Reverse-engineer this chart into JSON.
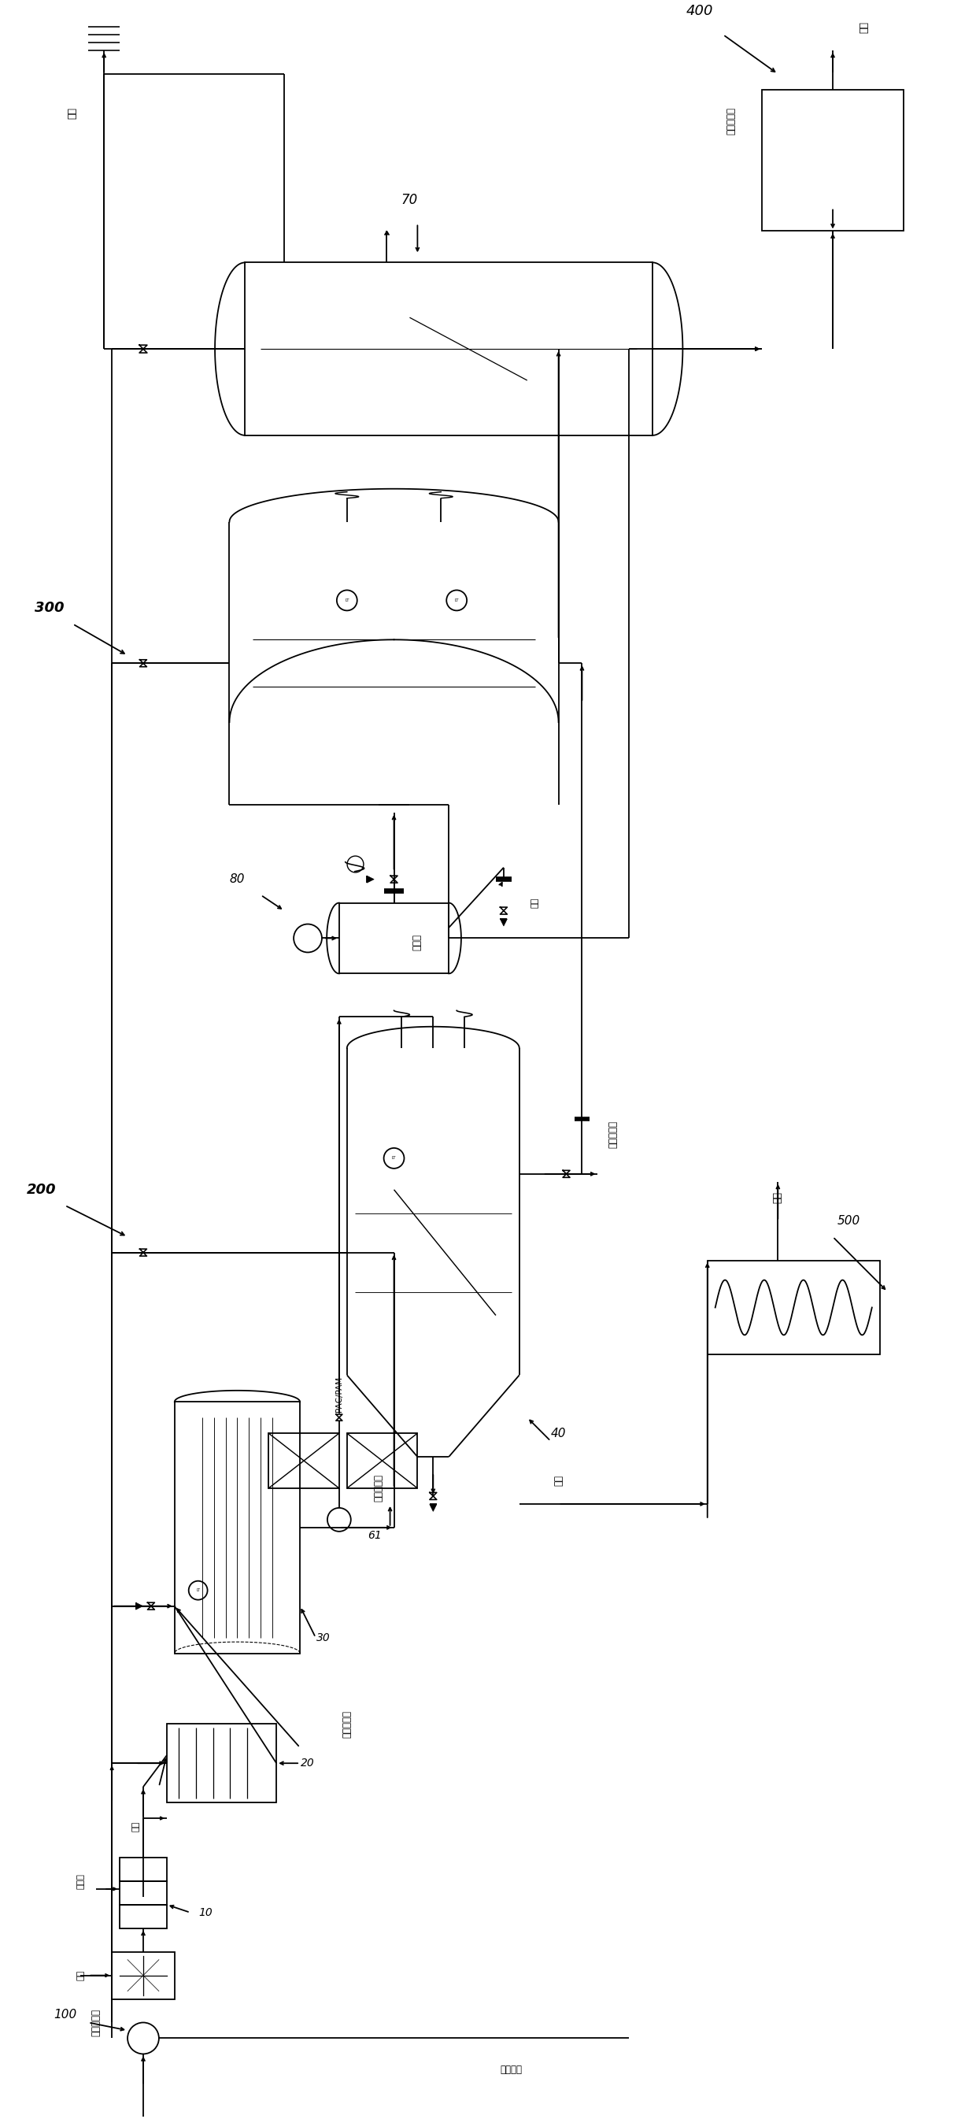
{
  "bg_color": "#ffffff",
  "line_color": "#000000",
  "fig_width": 12.4,
  "fig_height": 26.91,
  "labels": {
    "exhaust": "排气",
    "produced_water": "产水",
    "section_300": "300",
    "section_70": "70",
    "section_80": "80",
    "third_treatment": "第三处理液",
    "section_400": "400",
    "dissolved_water": "溶气水",
    "nitrogen": "氮气",
    "second_treatment": "第二处理液",
    "dry_mud": "干泥",
    "section_200": "200",
    "section_40": "40",
    "section_61": "61",
    "pac_pam": "PAC/PAM",
    "first_treatment": "第一处理液",
    "float_slag": "浮渣",
    "section_500": "500",
    "section_30": "30",
    "gas_mixture": "气液混合液",
    "section_20": "20",
    "ozone": "臭氧",
    "catalyst": "催化剂",
    "air": "空气",
    "section_10": "10",
    "section_100": "100",
    "fracturing_return": "压裂返排液",
    "residual_sewage": "残余污水"
  }
}
